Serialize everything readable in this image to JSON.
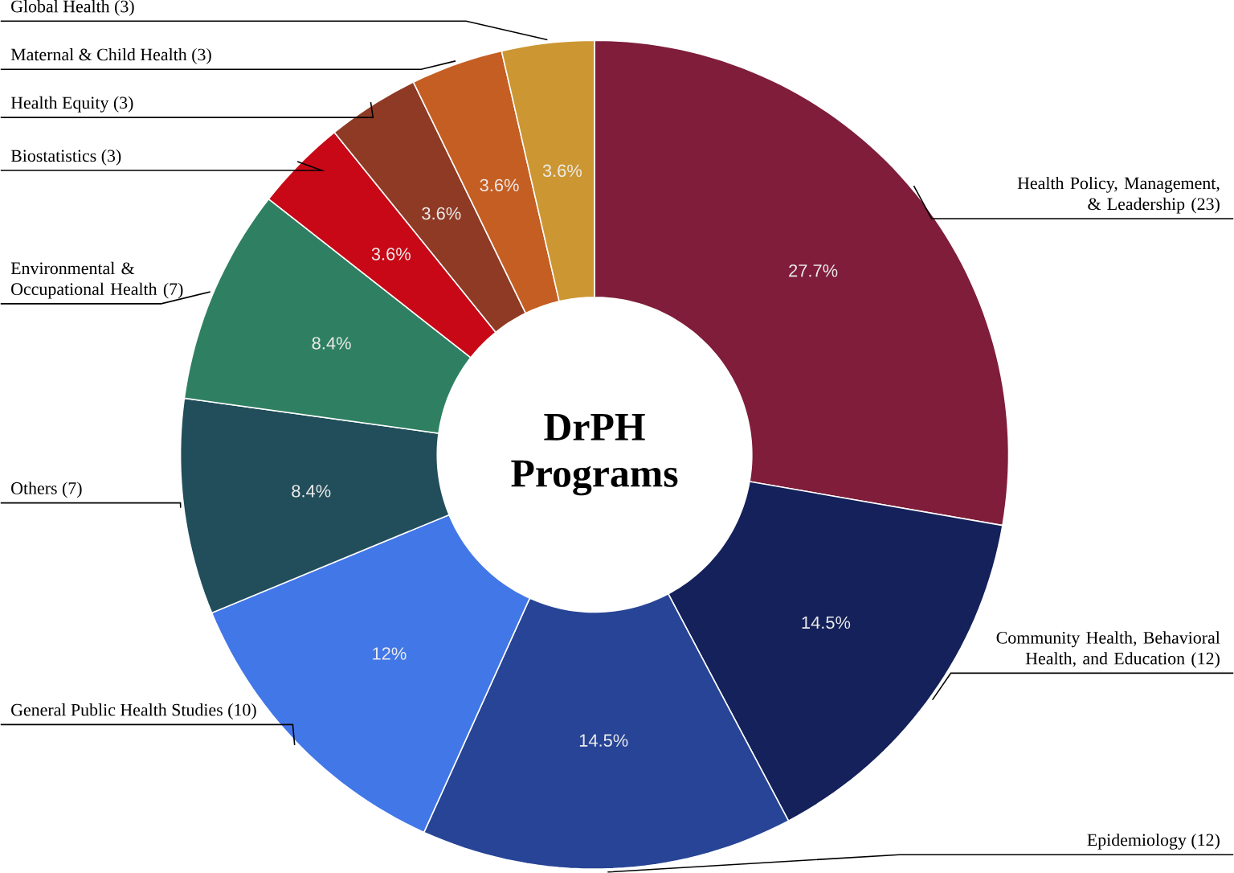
{
  "chart_data": {
    "type": "donut",
    "title": "DrPH Programs",
    "categories": [
      "Health Policy, Management, & Leadership (23)",
      "Community Health, Behavioral Health, and Education (12)",
      "Epidemiology (12)",
      "General Public Health Studies (10)",
      "Others (7)",
      "Environmental & Occupational Health (7)",
      "Biostatistics (3)",
      "Health Equity (3)",
      "Maternal & Child Health (3)",
      "Global Health (3)"
    ],
    "values": [
      27.7,
      14.5,
      14.5,
      12,
      8.4,
      8.4,
      3.6,
      3.6,
      3.6,
      3.6
    ],
    "colors": [
      "#7f1d3a",
      "#14215a",
      "#274496",
      "#4277e8",
      "#214e5a",
      "#2f8062",
      "#c80816",
      "#8f3a24",
      "#c55e22",
      "#cc9632"
    ],
    "value_labels": [
      "27.7%",
      "14.5%",
      "14.5%",
      "12%",
      "8.4%",
      "8.4%",
      "3.6%",
      "3.6%",
      "3.6%",
      "3.6%"
    ]
  }
}
